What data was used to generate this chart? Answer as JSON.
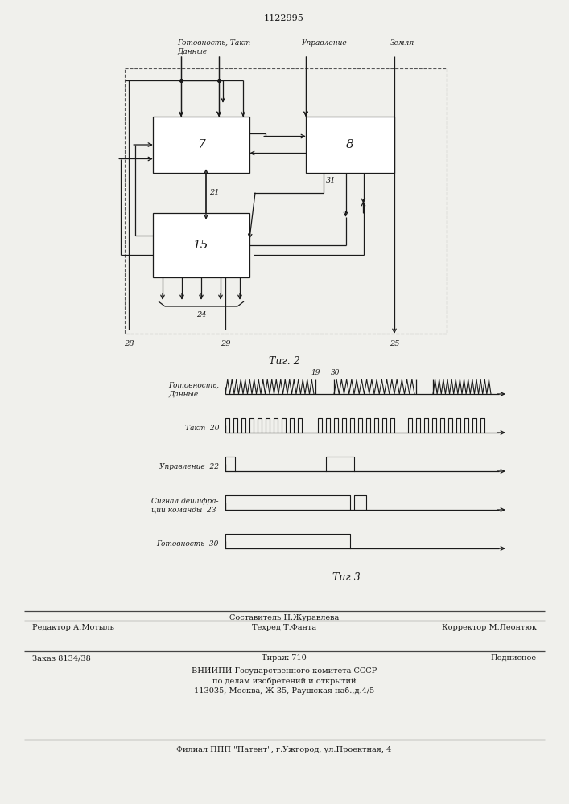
{
  "title": "1122995",
  "bg_color": "#f0f0ec",
  "fig2_label": "Τиг. 2",
  "fig3_label": "Τиг 3",
  "block7_label": "7",
  "block8_label": "8",
  "block15_label": "15",
  "input_label_gottakt": "Готовность, Такт",
  "input_label_dannye": "Данные",
  "input_label_upravl": "Управление",
  "input_label_zemlya": "Земля",
  "label_21": "21",
  "label_31": "31",
  "label_28": "28",
  "label_24": "24",
  "label_29": "29",
  "label_25": "25",
  "timing_label0": "Готовность,\nДанные",
  "timing_label1": "Такт  20",
  "timing_label2": "Управление  22",
  "timing_label3": "Сигнал дешифра-\nции команды  23",
  "timing_label4": "Готовность  30",
  "timing_num_19": "19",
  "timing_num_30": "30",
  "footer_sestavitel": "Составитель Н.Журавлева",
  "footer_redaktor": "Редактор А.Мотыль",
  "footer_tehred": "Техред Т.Фанта",
  "footer_korrektor": "Корректор М.Леонтюк",
  "footer_zakaz": "Заказ 8134/38",
  "footer_tirazh": "Тираж 710",
  "footer_podpisnoe": "Подписное",
  "footer_vniip1": "ВНИИПИ Государственного комитета СССР",
  "footer_vniip2": "по делам изобретений и открытий",
  "footer_vniip3": "113035, Москва, Ж-35, Раушская наб.,д.4/5",
  "footer_filial": "Филиал ППП \"Патент\", г.Ужгород, ул.Проектная, 4"
}
